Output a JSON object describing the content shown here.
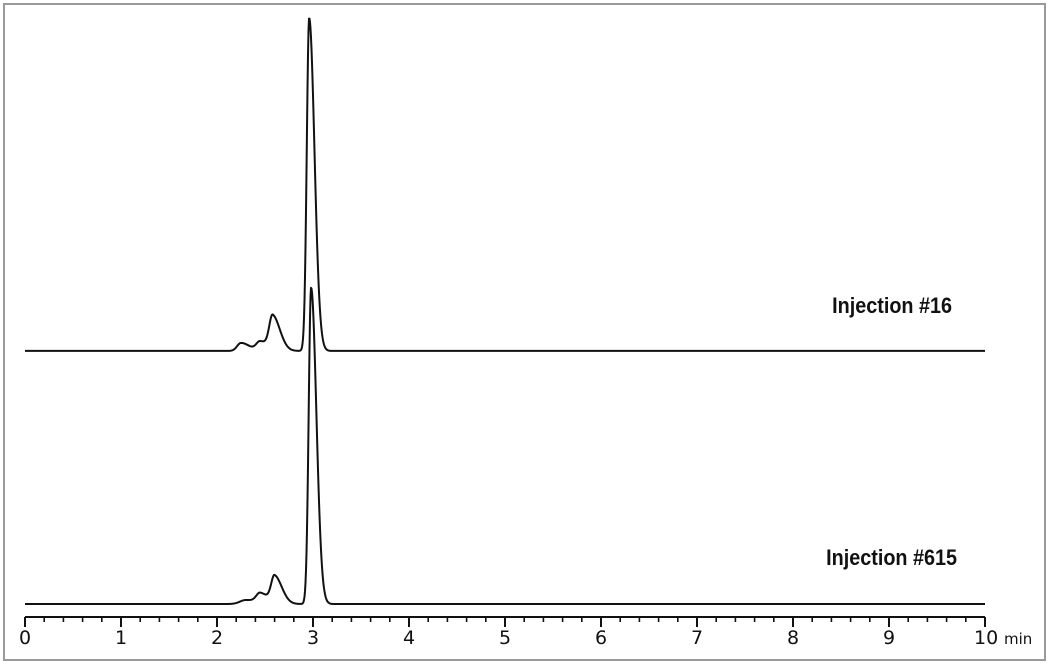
{
  "chart_data": {
    "type": "line",
    "title": "",
    "xlabel": "",
    "x_unit": "min",
    "ylabel": "",
    "xlim": [
      0,
      10
    ],
    "x_major_ticks": [
      0,
      1,
      2,
      3,
      4,
      5,
      6,
      7,
      8,
      9,
      10
    ],
    "x_minor_tick_step": 0.2,
    "grid": false,
    "y_axis_shown": false,
    "line_color": "#111111",
    "series": [
      {
        "name": "Injection #16",
        "baseline_offset": 76,
        "peaks": [
          {
            "time": 2.25,
            "height": 2.4,
            "width": 0.04
          },
          {
            "time": 2.45,
            "height": 2.8,
            "width": 0.04
          },
          {
            "time": 2.58,
            "height": 10,
            "width": 0.035
          },
          {
            "time": 2.96,
            "height": 100,
            "width": 0.025
          }
        ]
      },
      {
        "name": "Injection #615",
        "baseline_offset": 0,
        "peaks": [
          {
            "time": 2.3,
            "height": 1.2,
            "width": 0.06
          },
          {
            "time": 2.45,
            "height": 2.8,
            "width": 0.04
          },
          {
            "time": 2.6,
            "height": 8,
            "width": 0.035
          },
          {
            "time": 2.98,
            "height": 95,
            "width": 0.025
          }
        ]
      }
    ]
  }
}
